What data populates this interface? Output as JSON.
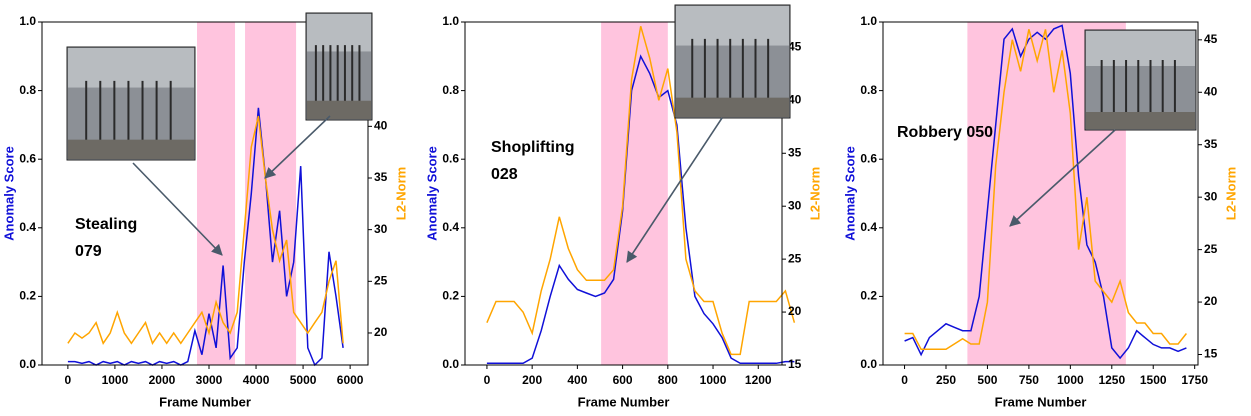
{
  "chart_data": [
    {
      "type": "line",
      "annotation_lines": [
        "Stealing",
        "079"
      ],
      "xlabel": "Frame Number",
      "ylabel": "Anomaly Score",
      "y2label": "L2-Norm",
      "x": [
        0,
        150,
        300,
        450,
        600,
        750,
        900,
        1050,
        1200,
        1350,
        1500,
        1650,
        1800,
        1950,
        2100,
        2250,
        2400,
        2550,
        2700,
        2850,
        3000,
        3150,
        3300,
        3450,
        3600,
        3750,
        3900,
        4050,
        4200,
        4350,
        4500,
        4650,
        4800,
        4950,
        5100,
        5250,
        5400,
        5550,
        5700,
        5850
      ],
      "series": [
        {
          "name": "Anomaly Score",
          "color": "#1010d8",
          "values": [
            0.01,
            0.01,
            0.005,
            0.01,
            0.0,
            0.01,
            0.005,
            0.01,
            0.0,
            0.01,
            0.005,
            0.01,
            0.0,
            0.01,
            0.005,
            0.01,
            0.0,
            0.01,
            0.1,
            0.03,
            0.15,
            0.05,
            0.29,
            0.02,
            0.05,
            0.3,
            0.5,
            0.75,
            0.55,
            0.3,
            0.45,
            0.2,
            0.3,
            0.58,
            0.05,
            0.0,
            0.02,
            0.33,
            0.2,
            0.05
          ]
        },
        {
          "name": "L2-Norm",
          "color": "#ffa500",
          "axis": "y2",
          "values": [
            19,
            20,
            19.5,
            20,
            21,
            19,
            20,
            22,
            20,
            19,
            20,
            21,
            19,
            20,
            19,
            20,
            19,
            20,
            21,
            22,
            20,
            23,
            21,
            20,
            22,
            30,
            38,
            41,
            35,
            30,
            27,
            29,
            22,
            21,
            20,
            21,
            22,
            25,
            27,
            19
          ]
        }
      ],
      "shaded_regions": [
        [
          2745,
          3553
        ],
        [
          3766,
          4851
        ]
      ],
      "xlim": [
        -550,
        6380
      ],
      "xticks": [
        0,
        1000,
        2000,
        3000,
        4000,
        5000,
        6000
      ],
      "ylim": [
        0,
        1
      ],
      "yticks": [
        {
          "value": 0,
          "label": "0.0"
        },
        0.2,
        0.4,
        0.6,
        0.8,
        {
          "value": 1,
          "label": "1.0"
        }
      ],
      "y2lim": [
        16.9,
        50.1
      ],
      "y2ticks": [
        20,
        25,
        30,
        35,
        40
      ]
    },
    {
      "type": "line",
      "annotation_lines": [
        "Shoplifting",
        "028"
      ],
      "xlabel": "Frame Number",
      "ylabel": "Anomaly Score",
      "y2label": "L2-Norm",
      "x": [
        0,
        40,
        80,
        120,
        160,
        200,
        240,
        280,
        320,
        360,
        400,
        440,
        480,
        520,
        560,
        600,
        640,
        680,
        720,
        760,
        800,
        840,
        880,
        920,
        960,
        1000,
        1040,
        1080,
        1120,
        1160,
        1200,
        1240,
        1280,
        1320,
        1360
      ],
      "series": [
        {
          "name": "Anomaly Score",
          "color": "#1010d8",
          "values": [
            0.005,
            0.005,
            0.005,
            0.005,
            0.005,
            0.02,
            0.1,
            0.2,
            0.29,
            0.25,
            0.22,
            0.21,
            0.2,
            0.21,
            0.25,
            0.45,
            0.8,
            0.9,
            0.85,
            0.78,
            0.8,
            0.7,
            0.4,
            0.2,
            0.15,
            0.12,
            0.08,
            0.02,
            0.005,
            0.005,
            0.005,
            0.005,
            0.005,
            0.01,
            0.01
          ]
        },
        {
          "name": "L2-Norm",
          "color": "#ffa500",
          "axis": "y2",
          "values": [
            19,
            21,
            21,
            21,
            20,
            18,
            22,
            25,
            29,
            26,
            24,
            23,
            23,
            23,
            24,
            30,
            42,
            47,
            44,
            40,
            43,
            37,
            25,
            22,
            21,
            21,
            18,
            16,
            16,
            21,
            21,
            21,
            21,
            22,
            19
          ]
        }
      ],
      "shaded_regions": [
        [
          505,
          800
        ]
      ],
      "xlim": [
        -97,
        1305
      ],
      "xticks": [
        0,
        200,
        400,
        600,
        800,
        1000,
        1200
      ],
      "ylim": [
        0,
        1
      ],
      "yticks": [
        {
          "value": 0,
          "label": "0.0"
        },
        0.2,
        0.4,
        0.6,
        0.8,
        {
          "value": 1,
          "label": "1.0"
        }
      ],
      "y2lim": [
        15,
        47.4
      ],
      "y2ticks": [
        15,
        20,
        25,
        30,
        35,
        40,
        45
      ]
    },
    {
      "type": "line",
      "annotation_lines": [
        "Robbery 050"
      ],
      "xlabel": "Frame Number",
      "ylabel": "Anomaly Score",
      "y2label": "L2-Norm",
      "x": [
        0,
        50,
        100,
        150,
        200,
        250,
        300,
        350,
        400,
        450,
        500,
        550,
        600,
        650,
        700,
        750,
        800,
        850,
        900,
        950,
        1000,
        1050,
        1100,
        1150,
        1200,
        1250,
        1300,
        1350,
        1400,
        1450,
        1500,
        1550,
        1600,
        1650,
        1700
      ],
      "series": [
        {
          "name": "Anomaly Score",
          "color": "#1010d8",
          "values": [
            0.07,
            0.08,
            0.03,
            0.08,
            0.1,
            0.12,
            0.11,
            0.1,
            0.1,
            0.2,
            0.45,
            0.7,
            0.95,
            0.98,
            0.9,
            0.95,
            0.97,
            0.95,
            0.98,
            0.99,
            0.85,
            0.55,
            0.35,
            0.3,
            0.2,
            0.05,
            0.02,
            0.05,
            0.1,
            0.08,
            0.06,
            0.05,
            0.05,
            0.04,
            0.05
          ]
        },
        {
          "name": "L2-Norm",
          "color": "#ffa500",
          "axis": "y2",
          "values": [
            17,
            17,
            15.5,
            15.5,
            15.5,
            15.5,
            16,
            16.5,
            16,
            16,
            20,
            33,
            40,
            45,
            42,
            46,
            43,
            46,
            40,
            44,
            38,
            25,
            30,
            22,
            21,
            20,
            22,
            19,
            18,
            18,
            17,
            17,
            16,
            16,
            17
          ]
        }
      ],
      "shaded_regions": [
        [
          379,
          1335
        ]
      ],
      "xlim": [
        -130,
        1770
      ],
      "xticks": [
        0,
        250,
        500,
        750,
        1000,
        1250,
        1500,
        1750
      ],
      "ylim": [
        0,
        1
      ],
      "yticks": [
        {
          "value": 0,
          "label": "0.0"
        },
        0.2,
        0.4,
        0.6,
        0.8,
        {
          "value": 1,
          "label": "1.0"
        }
      ],
      "y2lim": [
        14,
        46.7
      ],
      "y2ticks": [
        15,
        20,
        25,
        30,
        35,
        40,
        45
      ]
    }
  ]
}
